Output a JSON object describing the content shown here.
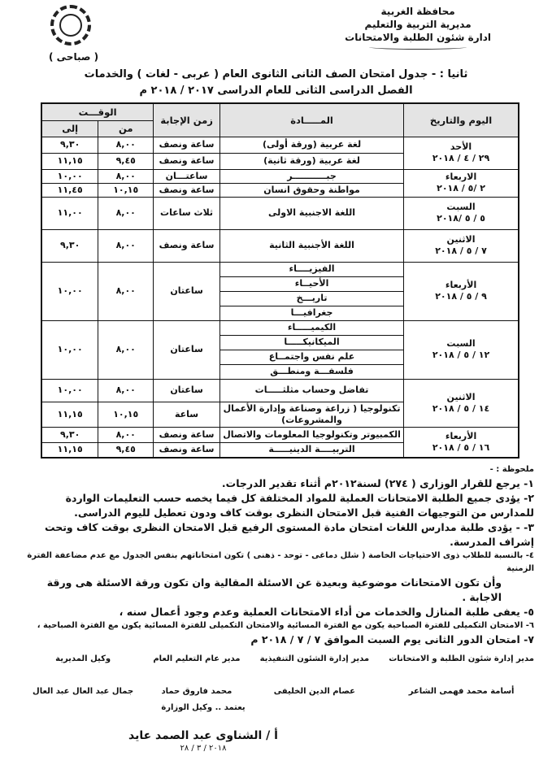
{
  "header": {
    "lines": [
      "محافظة الغربية",
      "مديرية التربية والتعليم",
      "ادارة شئون الطلبة والامتحانات"
    ],
    "period": "( صباحى )"
  },
  "title": {
    "line1": "ثانيا : -  جدول امتحان الصف الثانى الثانوى العام ( عربى - لغات ) والخدمات",
    "line2": "الفصل الدراسى الثانى للعام الدراسى ٢٠١٧ / ٢٠١٨ م"
  },
  "table": {
    "headers": {
      "day": "اليوم والتاريخ",
      "subject": "المـــــادة",
      "duration": "زمن الإجابة",
      "time": "الوقـــت",
      "from": "من",
      "to": "إلى"
    },
    "days": [
      {
        "day": "الأحد",
        "date": "٢٩ / ٤ / ٢٠١٨",
        "rows": [
          {
            "subject": "لغة عربية (ورقة أولى)",
            "duration": "ساعة ونصف",
            "from": "٨,٠٠",
            "to": "٩,٣٠"
          },
          {
            "subject": "لغة عربية (ورقة ثانية)",
            "duration": "ساعة ونصف",
            "from": "٩,٤٥",
            "to": "١١,١٥"
          }
        ]
      },
      {
        "day": "الاربعاء",
        "date": "٢ /٥ / ٢٠١٨",
        "rows": [
          {
            "subject": "جبـــــــــــر",
            "duration": "ساعتـــان",
            "from": "٨,٠٠",
            "to": "١٠,٠٠"
          },
          {
            "subject": "مواطنة وحقوق انسان",
            "duration": "ساعة ونصف",
            "from": "١٠,١٥",
            "to": "١١,٤٥"
          }
        ]
      },
      {
        "day": "السبت",
        "date": "٥ / ٥ /٢٠١٨",
        "rows": [
          {
            "subject": "اللغة الاجنبية الاولى",
            "duration": "ثلاث ساعات",
            "from": "٨,٠٠",
            "to": "١١,٠٠"
          }
        ]
      },
      {
        "day": "الاثنين",
        "date": "٧ / ٥ / ٢٠١٨",
        "rows": [
          {
            "subject": "اللغة الأجنبية الثانية",
            "duration": "ساعة ونصف",
            "from": "٨,٠٠",
            "to": "٩,٣٠"
          }
        ]
      },
      {
        "day": "الأربعاء",
        "date": "٩ / ٥ / ٢٠١٨",
        "subjects": [
          "الفيزيــــاء",
          "الأحيــاء",
          "تاريـــخ",
          "جغرافيـــا"
        ],
        "duration": "ساعتان",
        "from": "٨,٠٠",
        "to": "١٠,٠٠"
      },
      {
        "day": "السبت",
        "date": "١٢ / ٥ / ٢٠١٨",
        "subjects": [
          "الكيميـــــاء",
          "الميكانيكـــــا",
          "علم نفس واجتمــاع",
          "فلسفـــة ومنطـــق"
        ],
        "duration": "ساعتان",
        "from": "٨,٠٠",
        "to": "١٠,٠٠"
      },
      {
        "day": "الاثنين",
        "date": "١٤ / ٥ / ٢٠١٨",
        "rows": [
          {
            "subject": "تفاضل وحساب مثلثـــــات",
            "duration": "ساعتان",
            "from": "٨,٠٠",
            "to": "١٠,٠٠"
          },
          {
            "subject": "تكنولوجيا ( زراعة وصناعة وإدارة الأعمال والمشروعات)",
            "duration": "ساعة",
            "from": "١٠,١٥",
            "to": "١١,١٥"
          }
        ]
      },
      {
        "day": "الأربعاء",
        "date": "١٦ / ٥ / ٢٠١٨",
        "rows": [
          {
            "subject": "الكمبيوتر وتكنولوجيا المعلومات والاتصال",
            "duration": "ساعة ونصف",
            "from": "٨,٠٠",
            "to": "٩,٣٠"
          },
          {
            "subject": "التربيــــة الدينيـــــة",
            "duration": "ساعة ونصف",
            "from": "٩,٤٥",
            "to": "١١,١٥"
          }
        ]
      }
    ]
  },
  "notes": {
    "heading": "ملحوظة : -",
    "items": [
      "١- يرجع للقرار الوزارى ( ٢٧٤) لسنة٢٠١٢م أثناء تقدير الدرجات.",
      "٢- يؤدى جميع الطلبة الامتحانات العملية للمواد المختلفة كل فيما يخصه حسب التعليمات الواردة للمدارس من التوجيهات الفنية قبل الامتحان النظرى بوقت كاف ودون تعطيل لليوم الدراسى.",
      "٣- - يؤدى طلبة مدارس اللغات امتحان مادة المستوى الرفيع قبل الامتحان النظرى بوقت كاف وتحت إشراف المدرسة.",
      "٤- بالنسبة للطلاب ذوى الاحتياجات الخاصة ( شلل دماغى - توحد - ذهنى ) تكون امتحاناتهم بنفس الجدول مع عدم مضاعفة الفترة الزمنية",
      "وأن تكون الامتحانات موضوعية وبعيدة عن الاسئلة المقالية وان تكون ورقة الاسئلة هى ورقة الاجابة .",
      "٥- يعفى طلبة المنازل والخدمات من أداء الامتحانات العملية وعدم وجود أعمال سنه ،",
      "٦-  الامتحان التكميلى للفترة الصباحية يكون مع الفترة المسائية والامتحان التكميلى للفترة المسائية يكون مع الفترة الصباحية ،",
      "٧-  امتحان الدور الثانى يوم  السبت الموافق  ٧ / ٧ / ٢٠١٨ م"
    ]
  },
  "signatures": [
    {
      "title": "مدير إدارة شئون الطلبة و الامتحانات",
      "name": "أسامة محمد فهمى الشاعر"
    },
    {
      "title": "مدير إدارة الشئون التنفيذية",
      "name": "عصام الدين الخليفى"
    },
    {
      "title": "مدير عام التعليم العام",
      "name": "محمد فاروق حماد"
    },
    {
      "title": "وكيل المديرية",
      "name": "جمال عبد العال عبد العال"
    }
  ],
  "approval": {
    "title": "يعتمد .. وكيل الوزارة",
    "name": "أ / الشناوى عبد الصمد عايد",
    "date": "٢٠١٨ / ٣ / ٢٨"
  }
}
